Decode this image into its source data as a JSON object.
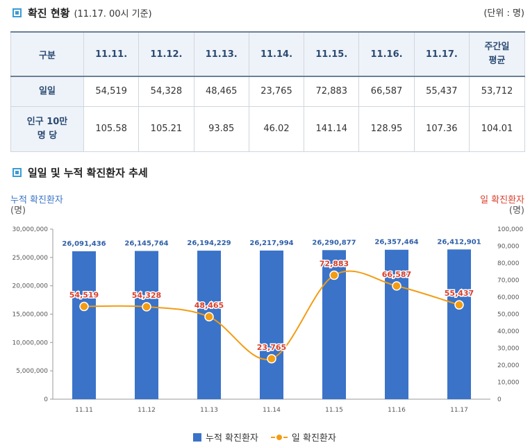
{
  "section1": {
    "title": "확진 현황",
    "subtitle": "(11.17. 00시 기준)",
    "unit": "(단위 : 명)"
  },
  "table": {
    "header": [
      "구분",
      "11.11.",
      "11.12.",
      "11.13.",
      "11.14.",
      "11.15.",
      "11.16.",
      "11.17.",
      "주간일 평균"
    ],
    "rows": [
      {
        "label": "일일",
        "values": [
          "54,519",
          "54,328",
          "48,465",
          "23,765",
          "72,883",
          "66,587",
          "55,437",
          "53,712"
        ]
      },
      {
        "label": "인구 10만 명 당",
        "values": [
          "105.58",
          "105.21",
          "93.85",
          "46.02",
          "141.14",
          "128.95",
          "107.36",
          "104.01"
        ]
      }
    ]
  },
  "section2": {
    "title": "일일 및 누적 확진환자 추세"
  },
  "chart_data": {
    "type": "bar",
    "title": "일일 및 누적 확진환자 추세",
    "categories": [
      "11.11",
      "11.12",
      "11.13",
      "11.14",
      "11.15",
      "11.16",
      "11.17"
    ],
    "series": [
      {
        "name": "누적 확진환자",
        "type": "bar",
        "axis": "left",
        "values": [
          26091436,
          26145764,
          26194229,
          26217994,
          26290877,
          26357464,
          26412901
        ],
        "labels": [
          "26,091,436",
          "26,145,764",
          "26,194,229",
          "26,217,994",
          "26,290,877",
          "26,357,464",
          "26,412,901"
        ]
      },
      {
        "name": "일 확진환자",
        "type": "line",
        "axis": "right",
        "values": [
          54519,
          54328,
          48465,
          23765,
          72883,
          66587,
          55437
        ],
        "labels": [
          "54,519",
          "54,328",
          "48,465",
          "23,765",
          "72,883",
          "66,587",
          "55,437"
        ]
      }
    ],
    "left_axis": {
      "label": "누적 확진환자",
      "unit": "(명)",
      "ylim": [
        0,
        30000000
      ],
      "ticks": [
        "0",
        "5,000,000",
        "10,000,000",
        "15,000,000",
        "20,000,000",
        "25,000,000",
        "30,000,000"
      ]
    },
    "right_axis": {
      "label": "일 확진환자",
      "unit": "(명)",
      "ylim": [
        0,
        100000
      ],
      "ticks": [
        "0",
        "10,000",
        "20,000",
        "30,000",
        "40,000",
        "50,000",
        "60,000",
        "70,000",
        "80,000",
        "90,000",
        "100,000"
      ]
    },
    "colors": {
      "bar": "#3a73c8",
      "line": "#f39c12",
      "bar_label": "#2f5fa8",
      "line_label": "#d9402b",
      "left_axis_title": "#3a73c8",
      "right_axis_title": "#d9402b"
    },
    "legend": [
      "누적 확진환자",
      "일 확진환자"
    ]
  }
}
